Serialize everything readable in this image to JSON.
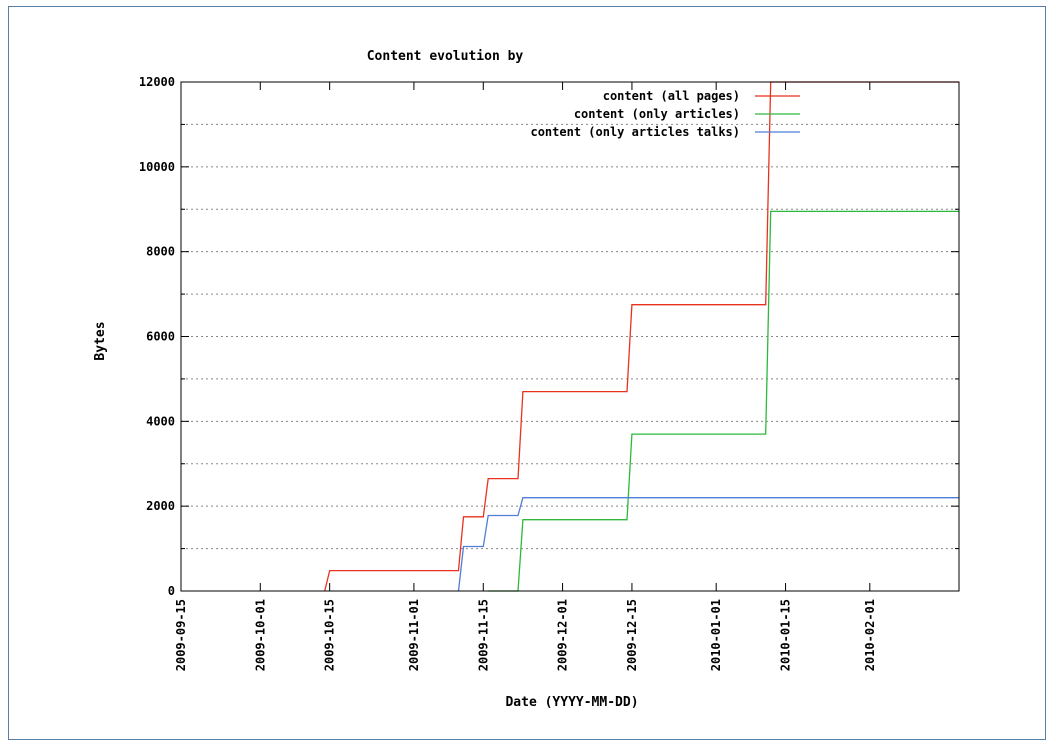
{
  "chart_data": {
    "type": "line",
    "title": "Content evolution by",
    "xlabel": "Date (YYYY-MM-DD)",
    "ylabel": "Bytes",
    "xlim": [
      "2009-09-15",
      "2010-02-19"
    ],
    "ylim": [
      0,
      12000
    ],
    "x_ticks": [
      "2009-09-15",
      "2009-10-01",
      "2009-10-15",
      "2009-11-01",
      "2009-11-15",
      "2009-12-01",
      "2009-12-15",
      "2010-01-01",
      "2010-01-15",
      "2010-02-01"
    ],
    "y_ticks": [
      0,
      2000,
      4000,
      6000,
      8000,
      10000,
      12000
    ],
    "y_minor_grid": [
      1000,
      3000,
      5000,
      7000,
      9000,
      11000
    ],
    "grid": true,
    "step": true,
    "legend_position": "top-right",
    "series": [
      {
        "name": "content (all pages)",
        "color": "#e8321e",
        "points": [
          [
            "2009-10-14",
            0
          ],
          [
            "2009-10-15",
            480
          ],
          [
            "2009-11-10",
            480
          ],
          [
            "2009-11-11",
            1750
          ],
          [
            "2009-11-15",
            1750
          ],
          [
            "2009-11-16",
            2650
          ],
          [
            "2009-11-22",
            2650
          ],
          [
            "2009-11-23",
            4700
          ],
          [
            "2009-12-14",
            4700
          ],
          [
            "2009-12-15",
            6750
          ],
          [
            "2010-01-11",
            6750
          ],
          [
            "2010-01-12",
            12000
          ],
          [
            "2010-02-19",
            12000
          ]
        ]
      },
      {
        "name": "content (only articles)",
        "color": "#2db83d",
        "points": [
          [
            "2009-11-16",
            0
          ],
          [
            "2009-11-22",
            0
          ],
          [
            "2009-11-23",
            1680
          ],
          [
            "2009-12-14",
            1680
          ],
          [
            "2009-12-15",
            3700
          ],
          [
            "2010-01-11",
            3700
          ],
          [
            "2010-01-12",
            8950
          ],
          [
            "2010-02-19",
            8950
          ]
        ]
      },
      {
        "name": "content (only articles talks)",
        "color": "#4f7ed8",
        "points": [
          [
            "2009-11-10",
            0
          ],
          [
            "2009-11-11",
            1050
          ],
          [
            "2009-11-15",
            1050
          ],
          [
            "2009-11-16",
            1780
          ],
          [
            "2009-11-22",
            1780
          ],
          [
            "2009-11-23",
            2200
          ],
          [
            "2010-02-19",
            2200
          ]
        ]
      }
    ]
  }
}
